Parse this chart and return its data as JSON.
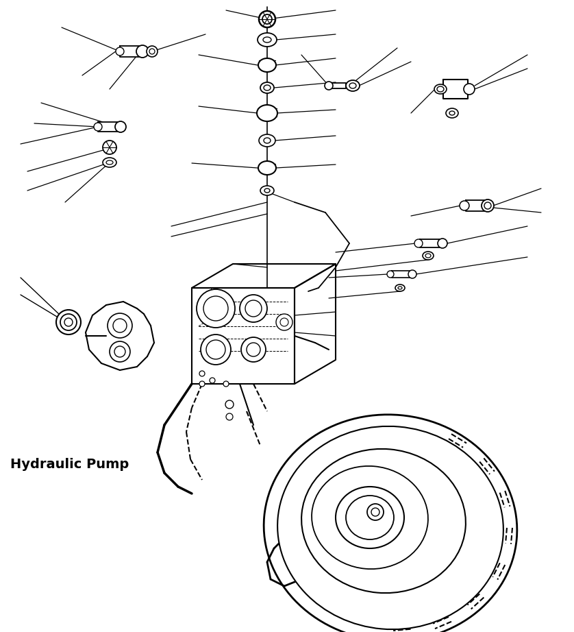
{
  "label": "Hydraulic Pump",
  "label_fontsize": 14,
  "label_fontweight": "bold",
  "bg_color": "#ffffff",
  "line_color": "#000000",
  "figsize": [
    8.38,
    9.22
  ],
  "dpi": 100,
  "lw": 1.3
}
